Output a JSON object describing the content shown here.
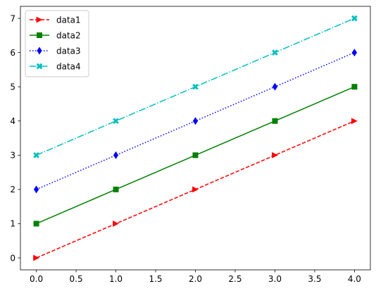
{
  "chart_data": {
    "type": "line",
    "title": "",
    "xlabel": "",
    "ylabel": "",
    "xlim": [
      -0.2,
      4.2
    ],
    "ylim": [
      -0.35,
      7.35
    ],
    "x_ticks": [
      0.0,
      0.5,
      1.0,
      1.5,
      2.0,
      2.5,
      3.0,
      3.5,
      4.0
    ],
    "x_tick_labels": [
      "0.0",
      "0.5",
      "1.0",
      "1.5",
      "2.0",
      "2.5",
      "3.0",
      "3.5",
      "4.0"
    ],
    "y_ticks": [
      0,
      1,
      2,
      3,
      4,
      5,
      6,
      7
    ],
    "y_tick_labels": [
      "0",
      "1",
      "2",
      "3",
      "4",
      "5",
      "6",
      "7"
    ],
    "grid": false,
    "legend_position": "top-left",
    "x": [
      0,
      1,
      2,
      3,
      4
    ],
    "series": [
      {
        "name": "data1",
        "values": [
          0,
          1,
          2,
          3,
          4
        ],
        "color": "#ff0000",
        "line_style": "dashed",
        "marker": "triangle-right"
      },
      {
        "name": "data2",
        "values": [
          1,
          2,
          3,
          4,
          5
        ],
        "color": "#008000",
        "line_style": "solid",
        "marker": "square"
      },
      {
        "name": "data3",
        "values": [
          2,
          3,
          4,
          5,
          6
        ],
        "color": "#0000ff",
        "line_style": "dotted",
        "marker": "thin-diamond"
      },
      {
        "name": "data4",
        "values": [
          3,
          4,
          5,
          6,
          7
        ],
        "color": "#00bfbf",
        "line_style": "dashdot",
        "marker": "x-filled"
      }
    ]
  }
}
